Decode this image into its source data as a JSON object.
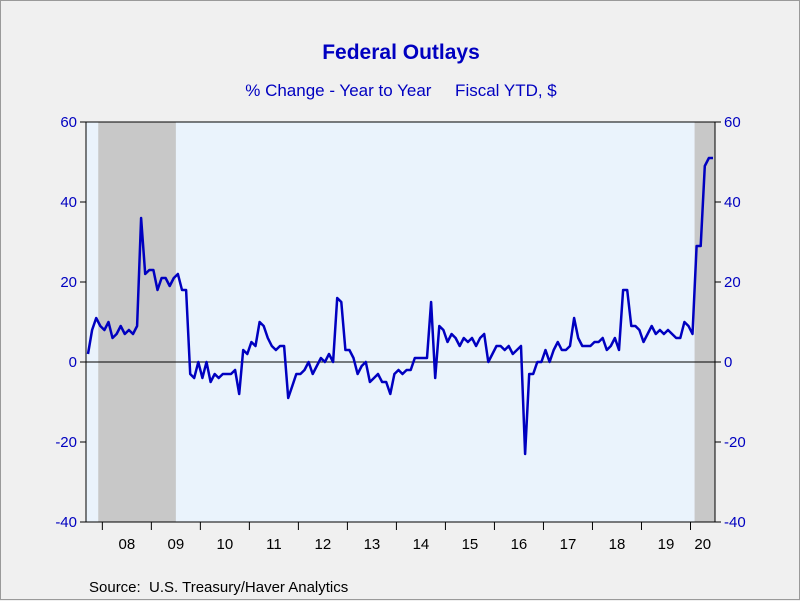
{
  "chart_data": {
    "type": "line",
    "title": "Federal Outlays",
    "subtitle": "% Change - Year to Year     Fiscal YTD, $",
    "source": "Source:  U.S. Treasury/Haver Analytics",
    "ylim": [
      -40,
      60
    ],
    "y_ticks": [
      -40,
      -20,
      0,
      20,
      40,
      60
    ],
    "y_tick_labels": [
      "-40",
      "-20",
      "0",
      "20",
      "40",
      "60"
    ],
    "x_range": [
      "2007-09",
      "2020-06"
    ],
    "x_ticks": [
      "08",
      "09",
      "10",
      "11",
      "12",
      "13",
      "14",
      "15",
      "16",
      "17",
      "18",
      "19",
      "20"
    ],
    "recessions": [
      {
        "start": "2007-12",
        "end": "2009-06"
      },
      {
        "start": "2020-02",
        "end": "2020-06"
      }
    ],
    "zero_line": true,
    "colors": {
      "line": "#0000c0",
      "plot_background": "#eaf3fc",
      "recession_shade": "#c8c8c8",
      "text": "#0000c0"
    },
    "series": [
      {
        "x": [
          "2007-09",
          "2007-10",
          "2007-11",
          "2007-12",
          "2008-01",
          "2008-02",
          "2008-03",
          "2008-04",
          "2008-05",
          "2008-06",
          "2008-07",
          "2008-08",
          "2008-09",
          "2008-10",
          "2008-11",
          "2008-12",
          "2009-01",
          "2009-02",
          "2009-03",
          "2009-04",
          "2009-05",
          "2009-06",
          "2009-07",
          "2009-08",
          "2009-09",
          "2009-10",
          "2009-11",
          "2009-12",
          "2010-01",
          "2010-02",
          "2010-03",
          "2010-04",
          "2010-05",
          "2010-06",
          "2010-07",
          "2010-08",
          "2010-09",
          "2010-10",
          "2010-11",
          "2010-12",
          "2011-01",
          "2011-02",
          "2011-03",
          "2011-04",
          "2011-05",
          "2011-06",
          "2011-07",
          "2011-08",
          "2011-09",
          "2011-10",
          "2011-11",
          "2011-12",
          "2012-01",
          "2012-02",
          "2012-03",
          "2012-04",
          "2012-05",
          "2012-06",
          "2012-07",
          "2012-08",
          "2012-09",
          "2012-10",
          "2012-11",
          "2012-12",
          "2013-01",
          "2013-02",
          "2013-03",
          "2013-04",
          "2013-05",
          "2013-06",
          "2013-07",
          "2013-08",
          "2013-09",
          "2013-10",
          "2013-11",
          "2013-12",
          "2014-01",
          "2014-02",
          "2014-03",
          "2014-04",
          "2014-05",
          "2014-06",
          "2014-07",
          "2014-08",
          "2014-09",
          "2014-10",
          "2014-11",
          "2014-12",
          "2015-01",
          "2015-02",
          "2015-03",
          "2015-04",
          "2015-05",
          "2015-06",
          "2015-07",
          "2015-08",
          "2015-09",
          "2015-10",
          "2015-11",
          "2015-12",
          "2016-01",
          "2016-02",
          "2016-03",
          "2016-04",
          "2016-05",
          "2016-06",
          "2016-07",
          "2016-08",
          "2016-09",
          "2016-10",
          "2016-11",
          "2016-12",
          "2017-01",
          "2017-02",
          "2017-03",
          "2017-04",
          "2017-05",
          "2017-06",
          "2017-07",
          "2017-08",
          "2017-09",
          "2017-10",
          "2017-11",
          "2017-12",
          "2018-01",
          "2018-02",
          "2018-03",
          "2018-04",
          "2018-05",
          "2018-06",
          "2018-07",
          "2018-08",
          "2018-09",
          "2018-10",
          "2018-11",
          "2018-12",
          "2019-01",
          "2019-02",
          "2019-03",
          "2019-04",
          "2019-05",
          "2019-06",
          "2019-07",
          "2019-08",
          "2019-09",
          "2019-10",
          "2019-11",
          "2019-12",
          "2020-01",
          "2020-02",
          "2020-03",
          "2020-04",
          "2020-05",
          "2020-06"
        ],
        "values": [
          2,
          8,
          11,
          9,
          8,
          10,
          6,
          7,
          9,
          7,
          8,
          7,
          9,
          36,
          22,
          23,
          23,
          18,
          21,
          21,
          19,
          21,
          22,
          18,
          18,
          -3,
          -4,
          0,
          -4,
          0,
          -5,
          -3,
          -4,
          -3,
          -3,
          -3,
          -2,
          -8,
          3,
          2,
          5,
          4,
          10,
          9,
          6,
          4,
          3,
          4,
          4,
          -9,
          -6,
          -3,
          -3,
          -2,
          0,
          -3,
          -1,
          1,
          0,
          2,
          0,
          16,
          15,
          3,
          3,
          1,
          -3,
          -1,
          0,
          -5,
          -4,
          -3,
          -5,
          -5,
          -8,
          -3,
          -2,
          -3,
          -2,
          -2,
          1,
          1,
          1,
          1,
          15,
          -4,
          9,
          8,
          5,
          7,
          6,
          4,
          6,
          5,
          6,
          4,
          6,
          7,
          0,
          2,
          4,
          4,
          3,
          4,
          2,
          3,
          4,
          -23,
          -3,
          -3,
          0,
          0,
          3,
          0,
          3,
          5,
          3,
          3,
          4,
          11,
          6,
          4,
          4,
          4,
          5,
          5,
          6,
          3,
          4,
          6,
          3,
          18,
          18,
          9,
          9,
          8,
          5,
          7,
          9,
          7,
          8,
          7,
          8,
          7,
          6,
          6,
          10,
          9,
          7,
          29,
          29,
          49,
          51,
          51
        ]
      }
    ]
  }
}
